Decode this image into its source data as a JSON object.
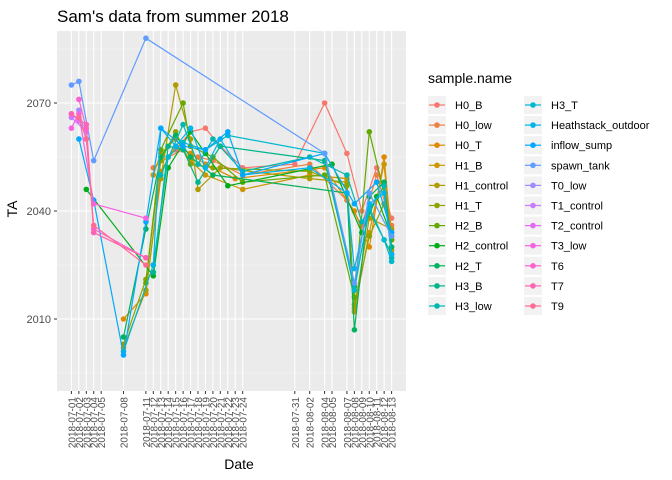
{
  "chart_data": {
    "type": "line",
    "title": "Sam's data from summer 2018",
    "xlabel": "Date",
    "ylabel": "TA",
    "legend_title": "sample.name",
    "legend_position": "right",
    "grid": true,
    "ylim": [
      1990,
      2090
    ],
    "y_ticks": [
      2010,
      2040,
      2070
    ],
    "x_tick_labels": [
      "2018-07-01",
      "2018-07-02",
      "2018-07-03",
      "2018-07-04",
      "2018-07-05",
      "2018-07-08",
      "2018-07-11",
      "2018-07-12",
      "2018-07-13",
      "2018-07-14",
      "2018-07-15",
      "2018-07-16",
      "2018-07-17",
      "2018-07-18",
      "2018-07-19",
      "2018-07-20",
      "2018-07-21",
      "2018-07-22",
      "2018-07-23",
      "2018-07-24",
      "2018-07-31",
      "2018-08-02",
      "2018-08-04",
      "2018-08-05",
      "2018-08-07",
      "2018-08-08",
      "2018-08-09",
      "2018-08-10",
      "2018-08-11",
      "2018-08-12",
      "2018-08-13"
    ],
    "series": [
      {
        "name": "H0_B",
        "color": "#F8766D",
        "points": [
          [
            "2018-07-15",
            2057
          ],
          [
            "2018-07-17",
            2062
          ],
          [
            "2018-07-19",
            2063
          ],
          [
            "2018-07-21",
            2058
          ],
          [
            "2018-07-24",
            2052
          ],
          [
            "2018-07-31",
            2053
          ],
          [
            "2018-08-04",
            2070
          ],
          [
            "2018-08-07",
            2056
          ],
          [
            "2018-08-09",
            2040
          ],
          [
            "2018-08-11",
            2052
          ],
          [
            "2018-08-13",
            2038
          ]
        ]
      },
      {
        "name": "H0_low",
        "color": "#EE8044",
        "points": [
          [
            "2018-07-12",
            2052
          ],
          [
            "2018-07-14",
            2055
          ],
          [
            "2018-07-16",
            2057
          ],
          [
            "2018-07-18",
            2055
          ],
          [
            "2018-07-20",
            2054
          ],
          [
            "2018-07-24",
            2050
          ],
          [
            "2018-08-02",
            2053
          ],
          [
            "2018-08-07",
            2043
          ],
          [
            "2018-08-09",
            2036
          ],
          [
            "2018-08-11",
            2050
          ],
          [
            "2018-08-13",
            2036
          ]
        ]
      },
      {
        "name": "H0_T",
        "color": "#DF8A00",
        "points": [
          [
            "2018-07-08",
            2010
          ],
          [
            "2018-07-11",
            2017
          ],
          [
            "2018-07-13",
            2051
          ],
          [
            "2018-07-15",
            2058
          ],
          [
            "2018-07-17",
            2056
          ],
          [
            "2018-07-19",
            2053
          ],
          [
            "2018-07-23",
            2049
          ],
          [
            "2018-08-04",
            2052
          ],
          [
            "2018-08-08",
            2040
          ],
          [
            "2018-08-10",
            2030
          ],
          [
            "2018-08-12",
            2055
          ],
          [
            "2018-08-13",
            2032
          ]
        ]
      },
      {
        "name": "H1_B",
        "color": "#CB9600",
        "points": [
          [
            "2018-07-12",
            2050
          ],
          [
            "2018-07-13",
            2056
          ],
          [
            "2018-07-15",
            2060
          ],
          [
            "2018-07-17",
            2054
          ],
          [
            "2018-07-19",
            2050
          ],
          [
            "2018-07-24",
            2046
          ],
          [
            "2018-08-02",
            2050
          ],
          [
            "2018-08-07",
            2049
          ],
          [
            "2018-08-08",
            2012
          ],
          [
            "2018-08-10",
            2034
          ],
          [
            "2018-08-12",
            2053
          ],
          [
            "2018-08-13",
            2029
          ]
        ]
      },
      {
        "name": "H1_control",
        "color": "#B09C00",
        "points": [
          [
            "2018-07-08",
            2002
          ],
          [
            "2018-07-11",
            2018
          ],
          [
            "2018-07-13",
            2049
          ],
          [
            "2018-07-15",
            2075
          ],
          [
            "2018-07-17",
            2060
          ],
          [
            "2018-07-18",
            2046
          ],
          [
            "2018-07-21",
            2052
          ],
          [
            "2018-08-02",
            2049
          ],
          [
            "2018-08-07",
            2048
          ],
          [
            "2018-08-08",
            2013
          ],
          [
            "2018-08-10",
            2038
          ],
          [
            "2018-08-13",
            2035
          ]
        ]
      },
      {
        "name": "H1_T",
        "color": "#8EA300",
        "points": [
          [
            "2018-07-08",
            2003
          ],
          [
            "2018-07-11",
            2021
          ],
          [
            "2018-07-13",
            2054
          ],
          [
            "2018-07-15",
            2062
          ],
          [
            "2018-07-17",
            2053
          ],
          [
            "2018-07-20",
            2052
          ],
          [
            "2018-08-02",
            2051
          ],
          [
            "2018-08-07",
            2047
          ],
          [
            "2018-08-08",
            2014
          ],
          [
            "2018-08-10",
            2033
          ],
          [
            "2018-08-12",
            2042
          ],
          [
            "2018-08-13",
            2034
          ]
        ]
      },
      {
        "name": "H2_B",
        "color": "#64A800",
        "points": [
          [
            "2018-07-11",
            2020
          ],
          [
            "2018-07-13",
            2057
          ],
          [
            "2018-07-16",
            2070
          ],
          [
            "2018-07-17",
            2058
          ],
          [
            "2018-07-20",
            2055
          ],
          [
            "2018-07-24",
            2048
          ],
          [
            "2018-08-04",
            2050
          ],
          [
            "2018-08-08",
            2016
          ],
          [
            "2018-08-10",
            2062
          ],
          [
            "2018-08-12",
            2045
          ],
          [
            "2018-08-13",
            2032
          ]
        ]
      },
      {
        "name": "H2_control",
        "color": "#00AD1A",
        "points": [
          [
            "2018-07-03",
            2046
          ],
          [
            "2018-07-12",
            2022
          ],
          [
            "2018-07-14",
            2052
          ],
          [
            "2018-07-17",
            2062
          ],
          [
            "2018-07-19",
            2056
          ],
          [
            "2018-07-22",
            2047
          ],
          [
            "2018-08-05",
            2053
          ],
          [
            "2018-08-09",
            2034
          ],
          [
            "2018-08-11",
            2044
          ],
          [
            "2018-08-13",
            2033
          ]
        ]
      },
      {
        "name": "H2_T",
        "color": "#00B25D",
        "points": [
          [
            "2018-07-08",
            2005
          ],
          [
            "2018-07-11",
            2035
          ],
          [
            "2018-07-13",
            2055
          ],
          [
            "2018-07-15",
            2061
          ],
          [
            "2018-07-17",
            2055
          ],
          [
            "2018-07-20",
            2050
          ],
          [
            "2018-08-07",
            2045
          ],
          [
            "2018-08-08",
            2007
          ],
          [
            "2018-08-10",
            2044
          ],
          [
            "2018-08-12",
            2048
          ],
          [
            "2018-08-13",
            2030
          ]
        ]
      },
      {
        "name": "H3_B",
        "color": "#00B68A",
        "points": [
          [
            "2018-07-12",
            2023
          ],
          [
            "2018-07-14",
            2058
          ],
          [
            "2018-07-16",
            2057
          ],
          [
            "2018-07-18",
            2048
          ],
          [
            "2018-07-21",
            2058
          ],
          [
            "2018-08-04",
            2054
          ],
          [
            "2018-08-08",
            2019
          ],
          [
            "2018-08-10",
            2040
          ],
          [
            "2018-08-13",
            2028
          ]
        ]
      },
      {
        "name": "H3_low",
        "color": "#00B8AF",
        "points": [
          [
            "2018-07-13",
            2050
          ],
          [
            "2018-07-16",
            2064
          ],
          [
            "2018-07-18",
            2053
          ],
          [
            "2018-07-20",
            2060
          ],
          [
            "2018-07-24",
            2051
          ],
          [
            "2018-08-02",
            2055
          ],
          [
            "2018-08-07",
            2050
          ],
          [
            "2018-08-09",
            2037
          ],
          [
            "2018-08-12",
            2047
          ],
          [
            "2018-08-13",
            2027
          ]
        ]
      },
      {
        "name": "H3_T",
        "color": "#00B8CF",
        "points": [
          [
            "2018-07-08",
            2001
          ],
          [
            "2018-07-12",
            2025
          ],
          [
            "2018-07-14",
            2055
          ],
          [
            "2018-07-16",
            2059
          ],
          [
            "2018-07-19",
            2057
          ],
          [
            "2018-07-22",
            2061
          ],
          [
            "2018-08-04",
            2056
          ],
          [
            "2018-08-08",
            2018
          ],
          [
            "2018-08-10",
            2041
          ],
          [
            "2018-08-12",
            2032
          ],
          [
            "2018-08-13",
            2026
          ]
        ]
      },
      {
        "name": "Heathstack_outdoor",
        "color": "#00B4EC",
        "points": [
          [
            "2018-07-12",
            2025
          ],
          [
            "2018-07-13",
            2063
          ],
          [
            "2018-07-15",
            2058
          ],
          [
            "2018-07-17",
            2063
          ],
          [
            "2018-07-19",
            2052
          ],
          [
            "2018-07-21",
            2060
          ],
          [
            "2018-07-24",
            2050
          ],
          [
            "2018-08-02",
            2052
          ],
          [
            "2018-08-07",
            2045
          ],
          [
            "2018-08-08",
            2024
          ],
          [
            "2018-08-10",
            2042
          ],
          [
            "2018-08-12",
            2045
          ],
          [
            "2018-08-13",
            2028
          ]
        ]
      },
      {
        "name": "inflow_sump",
        "color": "#00A9FF",
        "points": [
          [
            "2018-07-02",
            2060
          ],
          [
            "2018-07-04",
            2043
          ],
          [
            "2018-07-08",
            2000
          ],
          [
            "2018-07-11",
            2037
          ],
          [
            "2018-07-13",
            2063
          ],
          [
            "2018-07-16",
            2058
          ],
          [
            "2018-07-19",
            2057
          ],
          [
            "2018-07-22",
            2062
          ],
          [
            "2018-07-24",
            2050
          ],
          [
            "2018-08-04",
            2056
          ],
          [
            "2018-08-08",
            2042
          ],
          [
            "2018-08-11",
            2048
          ],
          [
            "2018-08-13",
            2034
          ]
        ]
      },
      {
        "name": "spawn_tank",
        "color": "#619CFF",
        "points": [
          [
            "2018-07-01",
            2075
          ],
          [
            "2018-07-02",
            2076
          ],
          [
            "2018-07-04",
            2054
          ],
          [
            "2018-07-11",
            2088
          ],
          [
            "2018-08-04",
            2056
          ],
          [
            "2018-08-08",
            2020
          ],
          [
            "2018-08-10",
            2045
          ],
          [
            "2018-08-13",
            2033
          ]
        ]
      },
      {
        "name": "T0_low",
        "color": "#9F8CFF",
        "points": [
          [
            "2018-07-02",
            2068
          ],
          [
            "2018-07-03",
            2060
          ]
        ]
      },
      {
        "name": "T1_control",
        "color": "#C77CFF",
        "points": [
          [
            "2018-07-01",
            2066
          ],
          [
            "2018-07-03",
            2062
          ]
        ]
      },
      {
        "name": "T2_control",
        "color": "#E46CF5",
        "points": [
          [
            "2018-07-01",
            2067
          ],
          [
            "2018-07-02",
            2065
          ]
        ]
      },
      {
        "name": "T3_low",
        "color": "#F463E2",
        "points": [
          [
            "2018-07-01",
            2063
          ],
          [
            "2018-07-02",
            2067
          ],
          [
            "2018-07-04",
            2042
          ],
          [
            "2018-07-11",
            2038
          ]
        ]
      },
      {
        "name": "T6",
        "color": "#FD61CF",
        "points": [
          [
            "2018-07-02",
            2071
          ],
          [
            "2018-07-03",
            2063
          ],
          [
            "2018-07-04",
            2035
          ],
          [
            "2018-07-11",
            2027
          ]
        ]
      },
      {
        "name": "T7",
        "color": "#FF64B2",
        "points": [
          [
            "2018-07-01",
            2067
          ],
          [
            "2018-07-03",
            2064
          ],
          [
            "2018-07-04",
            2034
          ],
          [
            "2018-07-11",
            2027
          ]
        ]
      },
      {
        "name": "T9",
        "color": "#FF6C92",
        "points": [
          [
            "2018-07-02",
            2066
          ],
          [
            "2018-07-03",
            2060
          ],
          [
            "2018-07-04",
            2036
          ],
          [
            "2018-07-11",
            2025
          ]
        ]
      }
    ]
  }
}
